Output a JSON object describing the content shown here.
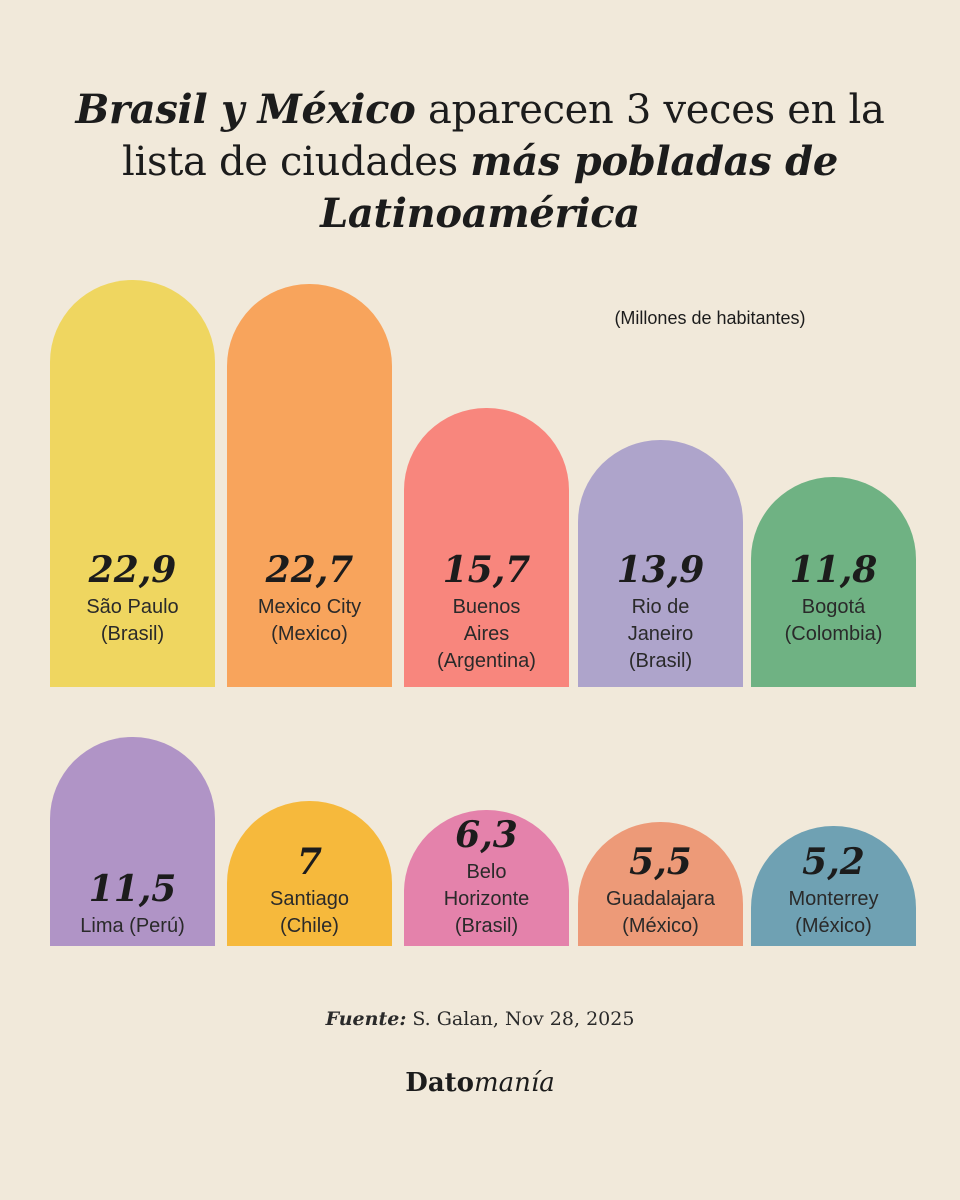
{
  "title": {
    "part1_em": "Brasil y México",
    "part2": " aparecen 3 veces en la lista de ciudades ",
    "part3_em": "más pobladas de Latinoamérica"
  },
  "chart_data": {
    "type": "bar",
    "unit_label": "(Millones de habitantes)",
    "categories": [
      "São Paulo\n(Brasil)",
      "Mexico City\n(Mexico)",
      "Buenos\nAires\n(Argentina)",
      "Rio de\nJaneiro\n(Brasil)",
      "Bogotá\n(Colombia)",
      "Lima (Perú)",
      "Santiago\n(Chile)",
      "Belo\nHorizonte\n(Brasil)",
      "Guadalajara\n(México)",
      "Monterrey\n(México)"
    ],
    "values": [
      22.9,
      22.7,
      15.7,
      13.9,
      11.8,
      11.5,
      7,
      6.3,
      5.5,
      5.2
    ],
    "value_labels": [
      "22,9",
      "22,7",
      "15,7",
      "13,9",
      "11,8",
      "11,5",
      "7",
      "6,3",
      "5,5",
      "5,2"
    ],
    "colors": [
      "#efd660",
      "#f8a45c",
      "#f8867d",
      "#aea4cb",
      "#6fb283",
      "#b094c6",
      "#f6b93c",
      "#e482ab",
      "#ed9a78",
      "#6fa1b3"
    ]
  },
  "footer": {
    "source_label": "Fuente:",
    "source_text": "S. Galan, Nov 28, 2025",
    "brand_part1": "Dato",
    "brand_part2": "manía"
  }
}
